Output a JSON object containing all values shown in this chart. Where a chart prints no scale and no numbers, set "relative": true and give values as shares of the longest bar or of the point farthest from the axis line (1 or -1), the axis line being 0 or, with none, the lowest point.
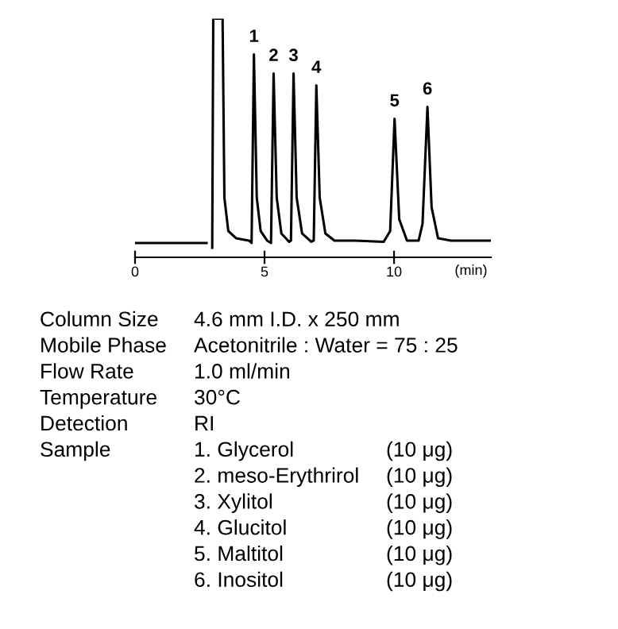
{
  "chart_data": {
    "type": "line",
    "relative": true,
    "xlabel": "(min)",
    "x": [
      0,
      2.76,
      2.85,
      2.98,
      3.02,
      3.38,
      3.45,
      3.6,
      3.9,
      4.4,
      4.5,
      4.59,
      4.7,
      4.85,
      5.1,
      5.25,
      5.35,
      5.47,
      5.65,
      5.95,
      6.02,
      6.12,
      6.24,
      6.45,
      6.8,
      6.9,
      7.0,
      7.13,
      7.35,
      7.7,
      8.5,
      9.6,
      9.85,
      10.02,
      10.2,
      10.5,
      10.95,
      11.1,
      11.29,
      11.45,
      11.7,
      12.2,
      13.74
    ],
    "series": [
      {
        "color": "#000000",
        "values": [
          0.06,
          0.06,
          null,
          0.04,
          1,
          1,
          0.25,
          0.11,
          0.08,
          0.07,
          0.06,
          0.85,
          0.25,
          0.11,
          0.07,
          0.06,
          0.77,
          0.25,
          0.1,
          0.065,
          0.07,
          0.77,
          0.25,
          0.1,
          0.065,
          0.07,
          0.72,
          0.25,
          0.1,
          0.07,
          0.07,
          0.065,
          0.11,
          0.58,
          0.16,
          0.07,
          0.07,
          0.14,
          0.63,
          0.21,
          0.08,
          0.07,
          0.07
        ]
      }
    ],
    "xlim": [
      0,
      13.74
    ],
    "xticks": [
      0,
      5,
      10
    ],
    "grid": false,
    "legend": false,
    "annotations": [
      {
        "text": "1",
        "x": 4.59,
        "y": 0.85
      },
      {
        "text": "2",
        "x": 5.35,
        "y": 0.77
      },
      {
        "text": "3",
        "x": 6.12,
        "y": 0.77
      },
      {
        "text": "4",
        "x": 7.0,
        "y": 0.72
      },
      {
        "text": "5",
        "x": 10.02,
        "y": 0.58
      },
      {
        "text": "6",
        "x": 11.29,
        "y": 0.63
      },
      "Column Size",
      "4.6 mm I.D. x 250 mm",
      "Mobile Phase",
      "Acetonitrile : Water = 75 : 25",
      "Flow Rate",
      "1.0 ml/min",
      "Temperature",
      "30°C",
      "Detection",
      "RI",
      "Sample",
      "1. Glycerol",
      "(10 μg)",
      "2. meso-Erythrirol",
      "(10 μg)",
      "3. Xylitol",
      "(10 μg)",
      "4. Glucitol",
      "(10 μg)",
      "5. Maltitol",
      "(10 μg)",
      "6. Inositol",
      "(10 μg)"
    ]
  }
}
